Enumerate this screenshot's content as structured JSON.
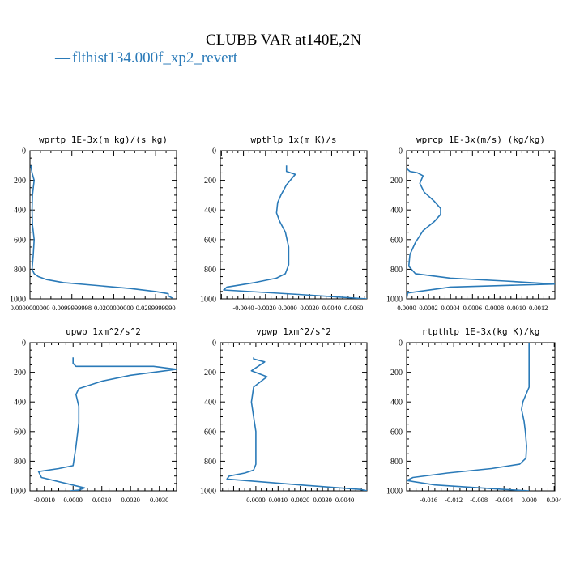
{
  "figure": {
    "title": "CLUBB VAR at140E,2N",
    "legend_label": "flthist134.000f_xp2_revert",
    "legend_marker": "—",
    "line_color": "#2a7ab8"
  },
  "chart_data": [
    {
      "type": "line",
      "title": "wprtp  1E-3x(m kg)/(s kg)",
      "ylim": [
        1000,
        0
      ],
      "y_reversed": true,
      "xlim": [
        0.0,
        0.0035
      ],
      "x_ticks": [
        0.0,
        0.01,
        0.02,
        0.03
      ],
      "x_tick_labels": [
        "0.0000000000",
        "0.0099999998",
        "0.0200000000",
        "0.0299999990"
      ],
      "x_tick_scale": 0.1,
      "y_ticks": [
        0,
        200,
        400,
        600,
        800,
        1000
      ],
      "y_tick_labels": [
        "0",
        "200",
        "400",
        "600",
        "800",
        "1000"
      ],
      "series": [
        {
          "x": [
            2e-05,
            5e-05,
            0.0001,
            8e-05,
            6e-05,
            5e-05,
            6e-05,
            0.0001,
            8e-05,
            5e-05,
            0.0001,
            0.0002,
            0.0004,
            0.0008,
            0.0016,
            0.0024,
            0.003,
            0.0033,
            0.0033,
            0.0034
          ],
          "y": [
            100,
            150,
            200,
            250,
            300,
            400,
            500,
            600,
            700,
            800,
            830,
            850,
            870,
            890,
            910,
            930,
            950,
            965,
            980,
            995
          ]
        }
      ]
    },
    {
      "type": "line",
      "title": "wpthlp  1x(m K)/s",
      "ylim": [
        1000,
        0
      ],
      "y_reversed": true,
      "xlim": [
        -0.0061,
        0.0072
      ],
      "x_ticks": [
        -0.004,
        -0.002,
        0.0,
        0.002,
        0.004,
        0.006
      ],
      "x_tick_labels": [
        "-0.0040",
        "-0.0020",
        "0.0000",
        "0.0020",
        "0.0040",
        "0.0060"
      ],
      "y_ticks": [
        0,
        200,
        400,
        600,
        800,
        1000
      ],
      "y_tick_labels": [
        "0",
        "200",
        "400",
        "600",
        "800",
        "1000"
      ],
      "series": [
        {
          "x": [
            -0.0001,
            -0.0001,
            0.0007,
            -0.0001,
            -0.0006,
            -0.0009,
            -0.001,
            -0.0007,
            -0.0002,
            0.0001,
            0.0001,
            -0.0002,
            -0.001,
            -0.003,
            -0.0055,
            -0.0058,
            0.001,
            0.0072
          ],
          "y": [
            100,
            140,
            160,
            230,
            300,
            350,
            420,
            480,
            550,
            650,
            770,
            830,
            860,
            890,
            920,
            940,
            970,
            1000
          ]
        }
      ]
    },
    {
      "type": "line",
      "title": "wprcp  1E-3x(m/s) (kg/kg)",
      "ylim": [
        1000,
        0
      ],
      "y_reversed": true,
      "xlim": [
        0.0,
        0.00135
      ],
      "x_ticks": [
        0.0,
        0.0002,
        0.0004,
        0.0006,
        0.0008,
        0.001,
        0.0012
      ],
      "x_tick_labels": [
        "0.0000",
        "0.0002",
        "0.0004",
        "0.0006",
        "0.0008",
        "0.0010",
        "0.0012"
      ],
      "y_ticks": [
        0,
        200,
        400,
        600,
        800,
        1000
      ],
      "y_tick_labels": [
        "0",
        "200",
        "400",
        "600",
        "800",
        "1000"
      ],
      "series": [
        {
          "x": [
            0.0,
            3e-05,
            0.0001,
            0.00015,
            0.00012,
            0.00016,
            0.00025,
            0.00031,
            0.00031,
            0.00025,
            0.00015,
            8e-05,
            3e-05,
            2e-05,
            8e-05,
            0.0004,
            0.0009,
            0.00135,
            0.0004,
            1e-05,
            0.0
          ],
          "y": [
            120,
            140,
            150,
            170,
            220,
            280,
            340,
            390,
            430,
            480,
            540,
            620,
            700,
            780,
            830,
            860,
            880,
            900,
            920,
            960,
            1000
          ]
        }
      ]
    },
    {
      "type": "line",
      "title": "upwp  1xm^2/s^2",
      "ylim": [
        1000,
        0
      ],
      "y_reversed": true,
      "xlim": [
        -0.0015,
        0.0036
      ],
      "x_ticks": [
        -0.001,
        0.0,
        0.001,
        0.002,
        0.003
      ],
      "x_tick_labels": [
        "-0.0010",
        "0.0000",
        "0.0010",
        "0.0020",
        "0.0030"
      ],
      "y_ticks": [
        0,
        200,
        400,
        600,
        800,
        1000
      ],
      "y_tick_labels": [
        "0",
        "200",
        "400",
        "600",
        "800",
        "1000"
      ],
      "series": [
        {
          "x": [
            0.0,
            0.0,
            0.0001,
            0.0028,
            0.0036,
            0.002,
            0.001,
            0.0002,
            0.0001,
            0.0002,
            0.0002,
            0.0001,
            0.0,
            -0.0005,
            -0.0012,
            -0.0011,
            0.0004,
            0.0002,
            -0.0001
          ],
          "y": [
            100,
            140,
            160,
            160,
            180,
            220,
            260,
            310,
            350,
            430,
            540,
            700,
            830,
            850,
            870,
            910,
            980,
            995,
            1000
          ]
        }
      ]
    },
    {
      "type": "line",
      "title": "vpwp  1xm^2/s^2",
      "ylim": [
        1000,
        0
      ],
      "y_reversed": true,
      "xlim": [
        -0.0016,
        0.005
      ],
      "x_ticks": [
        0.0,
        0.001,
        0.002,
        0.003,
        0.004
      ],
      "x_tick_labels": [
        "0.0000",
        "0.0010",
        "0.0020",
        "0.0030",
        "0.0040"
      ],
      "y_ticks": [
        0,
        200,
        400,
        600,
        800,
        1000
      ],
      "y_tick_labels": [
        "0",
        "200",
        "400",
        "600",
        "800",
        "1000"
      ],
      "series": [
        {
          "x": [
            -0.0001,
            -0.0001,
            0.0004,
            -0.0002,
            0.0005,
            -0.0001,
            -0.0002,
            -0.0001,
            0.0,
            0.0,
            0.0,
            -0.0001,
            -0.0005,
            -0.0012,
            -0.0013,
            0.002,
            0.0047,
            0.005
          ],
          "y": [
            100,
            110,
            130,
            190,
            230,
            300,
            400,
            500,
            600,
            700,
            820,
            860,
            880,
            900,
            920,
            960,
            990,
            1000
          ]
        }
      ]
    },
    {
      "type": "line",
      "title": "rtpthlp  1E-3x(kg K)/kg",
      "ylim": [
        1000,
        0
      ],
      "y_reversed": true,
      "xlim": [
        -0.0195,
        0.0041
      ],
      "x_ticks": [
        -0.016,
        -0.012,
        -0.008,
        -0.004,
        0.0,
        0.004
      ],
      "x_tick_labels": [
        "-0.016",
        "-0.012",
        "-0.008",
        "-0.004",
        "0.000",
        "0.004"
      ],
      "y_ticks": [
        0,
        200,
        400,
        600,
        800,
        1000
      ],
      "y_tick_labels": [
        "0",
        "200",
        "400",
        "600",
        "800",
        "1000"
      ],
      "series": [
        {
          "x": [
            0.0,
            0.0,
            0.0,
            -0.001,
            -0.0012,
            -0.0008,
            -0.0006,
            -0.0004,
            -0.0005,
            -0.0015,
            -0.006,
            -0.013,
            -0.0185,
            -0.0195,
            -0.015,
            -0.004,
            0.0
          ],
          "y": [
            0,
            100,
            300,
            400,
            450,
            530,
            600,
            700,
            780,
            820,
            850,
            880,
            910,
            930,
            960,
            990,
            1000
          ]
        }
      ]
    }
  ]
}
